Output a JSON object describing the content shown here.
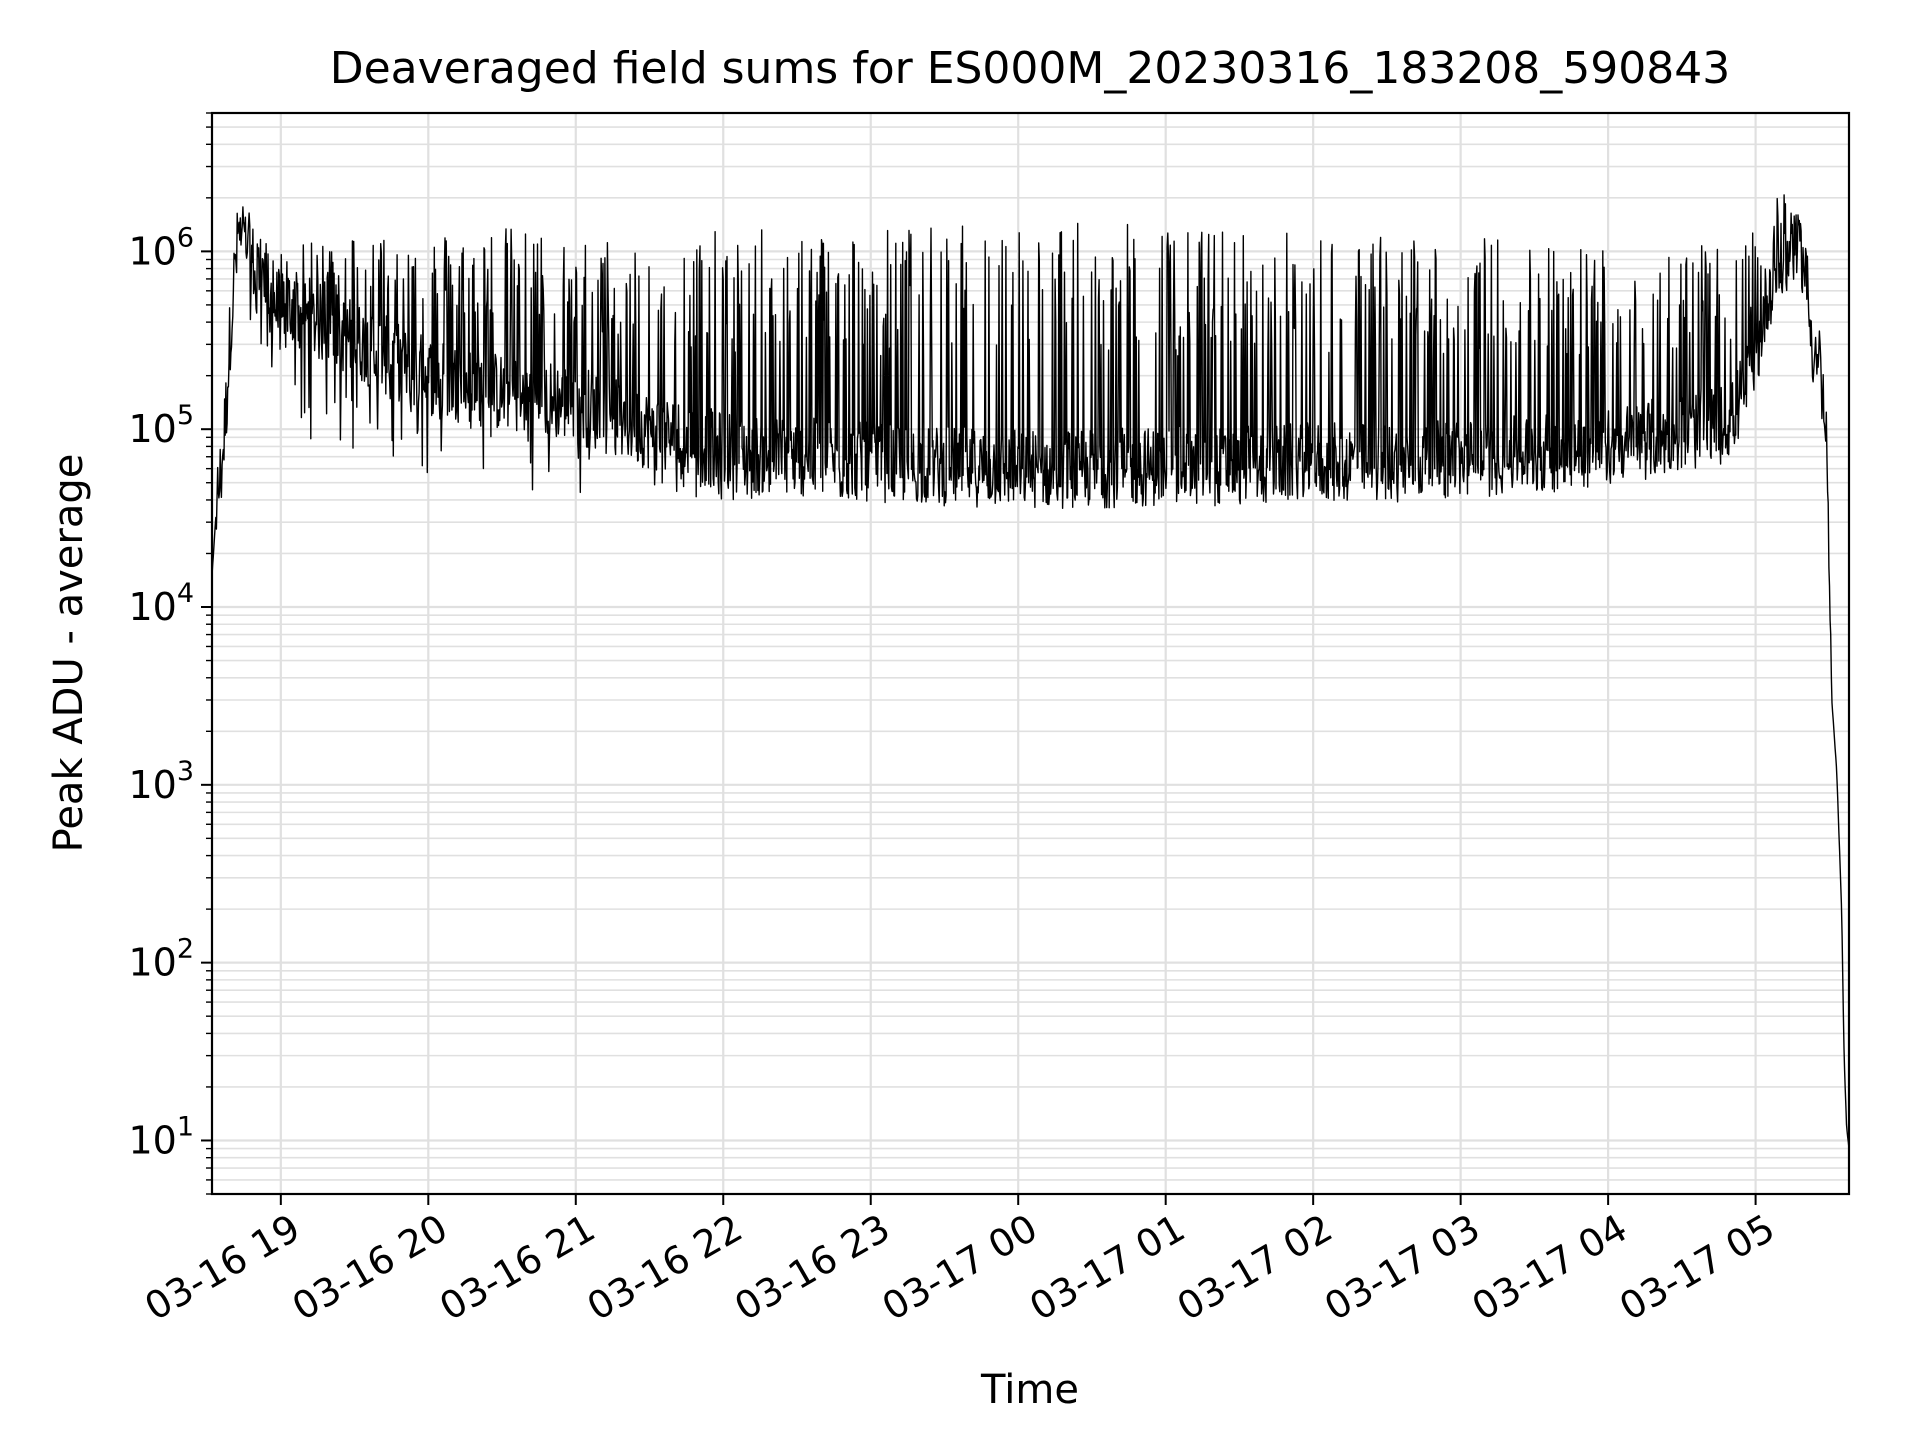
{
  "chart_data": {
    "type": "line",
    "title": "Deaveraged field sums for ES000M_20230316_183208_590843",
    "xlabel": "Time",
    "ylabel": "Peak ADU - average",
    "yscale": "log",
    "ylim": [
      5,
      6000000
    ],
    "xlim": [
      "2023-03-16 18:32",
      "2023-03-17 05:38"
    ],
    "grid": true,
    "line_color": "#000000",
    "grid_color": "#e0e0e0",
    "x_ticks": [
      {
        "t": "2023-03-16 19:00",
        "label": "03-16 19"
      },
      {
        "t": "2023-03-16 20:00",
        "label": "03-16 20"
      },
      {
        "t": "2023-03-16 21:00",
        "label": "03-16 21"
      },
      {
        "t": "2023-03-16 22:00",
        "label": "03-16 22"
      },
      {
        "t": "2023-03-16 23:00",
        "label": "03-16 23"
      },
      {
        "t": "2023-03-17 00:00",
        "label": "03-17 00"
      },
      {
        "t": "2023-03-17 01:00",
        "label": "03-17 01"
      },
      {
        "t": "2023-03-17 02:00",
        "label": "03-17 02"
      },
      {
        "t": "2023-03-17 03:00",
        "label": "03-17 03"
      },
      {
        "t": "2023-03-17 04:00",
        "label": "03-17 04"
      },
      {
        "t": "2023-03-17 05:00",
        "label": "03-17 05"
      }
    ],
    "y_ticks": [
      {
        "value": 10,
        "base": "10",
        "exp": "1"
      },
      {
        "value": 100,
        "base": "10",
        "exp": "2"
      },
      {
        "value": 1000,
        "base": "10",
        "exp": "3"
      },
      {
        "value": 10000,
        "base": "10",
        "exp": "4"
      },
      {
        "value": 100000,
        "base": "10",
        "exp": "5"
      },
      {
        "value": 1000000,
        "base": "10",
        "exp": "6"
      }
    ],
    "series": [
      {
        "x": [
          "2023-03-16 18:32",
          "2023-03-16 18:34",
          "2023-03-16 18:36",
          "2023-03-16 18:38",
          "2023-03-16 18:40",
          "2023-03-16 18:43",
          "2023-03-16 18:45",
          "2023-03-16 18:48",
          "2023-03-16 18:52",
          "2023-03-16 18:56",
          "2023-03-16 19:00",
          "2023-03-16 19:10",
          "2023-03-16 19:20",
          "2023-03-16 19:30",
          "2023-03-16 19:45",
          "2023-03-16 20:00",
          "2023-03-16 20:15",
          "2023-03-16 20:30",
          "2023-03-16 20:45",
          "2023-03-16 21:00",
          "2023-03-16 21:20",
          "2023-03-16 21:40",
          "2023-03-16 22:00",
          "2023-03-16 22:30",
          "2023-03-16 23:00",
          "2023-03-16 23:30",
          "2023-03-17 00:00",
          "2023-03-17 00:30",
          "2023-03-17 01:00",
          "2023-03-17 01:30",
          "2023-03-17 02:00",
          "2023-03-17 02:30",
          "2023-03-17 03:00",
          "2023-03-17 03:30",
          "2023-03-17 04:00",
          "2023-03-17 04:30",
          "2023-03-17 04:50",
          "2023-03-17 05:00",
          "2023-03-17 05:05",
          "2023-03-17 05:10",
          "2023-03-17 05:15",
          "2023-03-17 05:20",
          "2023-03-17 05:23",
          "2023-03-17 05:26",
          "2023-03-17 05:29",
          "2023-03-17 05:31",
          "2023-03-17 05:33",
          "2023-03-17 05:35",
          "2023-03-17 05:36",
          "2023-03-17 05:37",
          "2023-03-17 05:38"
        ],
        "y": [
          15000,
          40000,
          60000,
          150000,
          500000,
          1300000,
          1200000,
          900000,
          700000,
          550000,
          450000,
          420000,
          380000,
          320000,
          250000,
          200000,
          180000,
          160000,
          150000,
          140000,
          110000,
          90000,
          75000,
          70000,
          65000,
          62000,
          60000,
          60000,
          62000,
          62000,
          65000,
          65000,
          68000,
          72000,
          80000,
          95000,
          110000,
          250000,
          600000,
          850000,
          950000,
          900000,
          300000,
          250000,
          70000,
          3000,
          1200,
          200,
          30,
          12,
          9
        ],
        "y_max": [
          15000,
          40000,
          60000,
          200000,
          700000,
          1500000,
          1400000,
          1300000,
          1200000,
          1100000,
          1000000,
          1100000,
          1200000,
          1300000,
          1300000,
          1300000,
          1300000,
          1400000,
          1300000,
          1200000,
          1200000,
          1300000,
          1300000,
          1400000,
          1400000,
          1400000,
          1500000,
          1450000,
          1400000,
          1350000,
          1300000,
          1250000,
          1250000,
          1200000,
          1150000,
          1100000,
          1050000,
          1300000,
          2000000,
          2500000,
          2200000,
          1100000,
          300000,
          250000,
          70000,
          3000,
          1200,
          200,
          30,
          12,
          9
        ],
        "y_min": [
          15000,
          35000,
          50000,
          100000,
          300000,
          700000,
          500000,
          400000,
          300000,
          200000,
          150000,
          90000,
          80000,
          70000,
          60000,
          55000,
          50000,
          48000,
          45000,
          42000,
          40000,
          40000,
          40000,
          40000,
          40000,
          40000,
          40000,
          40000,
          40000,
          40000,
          42000,
          45000,
          50000,
          55000,
          55000,
          60000,
          80000,
          150000,
          400000,
          600000,
          700000,
          600000,
          250000,
          200000,
          40000,
          3000,
          1200,
          200,
          30,
          12,
          9
        ]
      }
    ]
  }
}
